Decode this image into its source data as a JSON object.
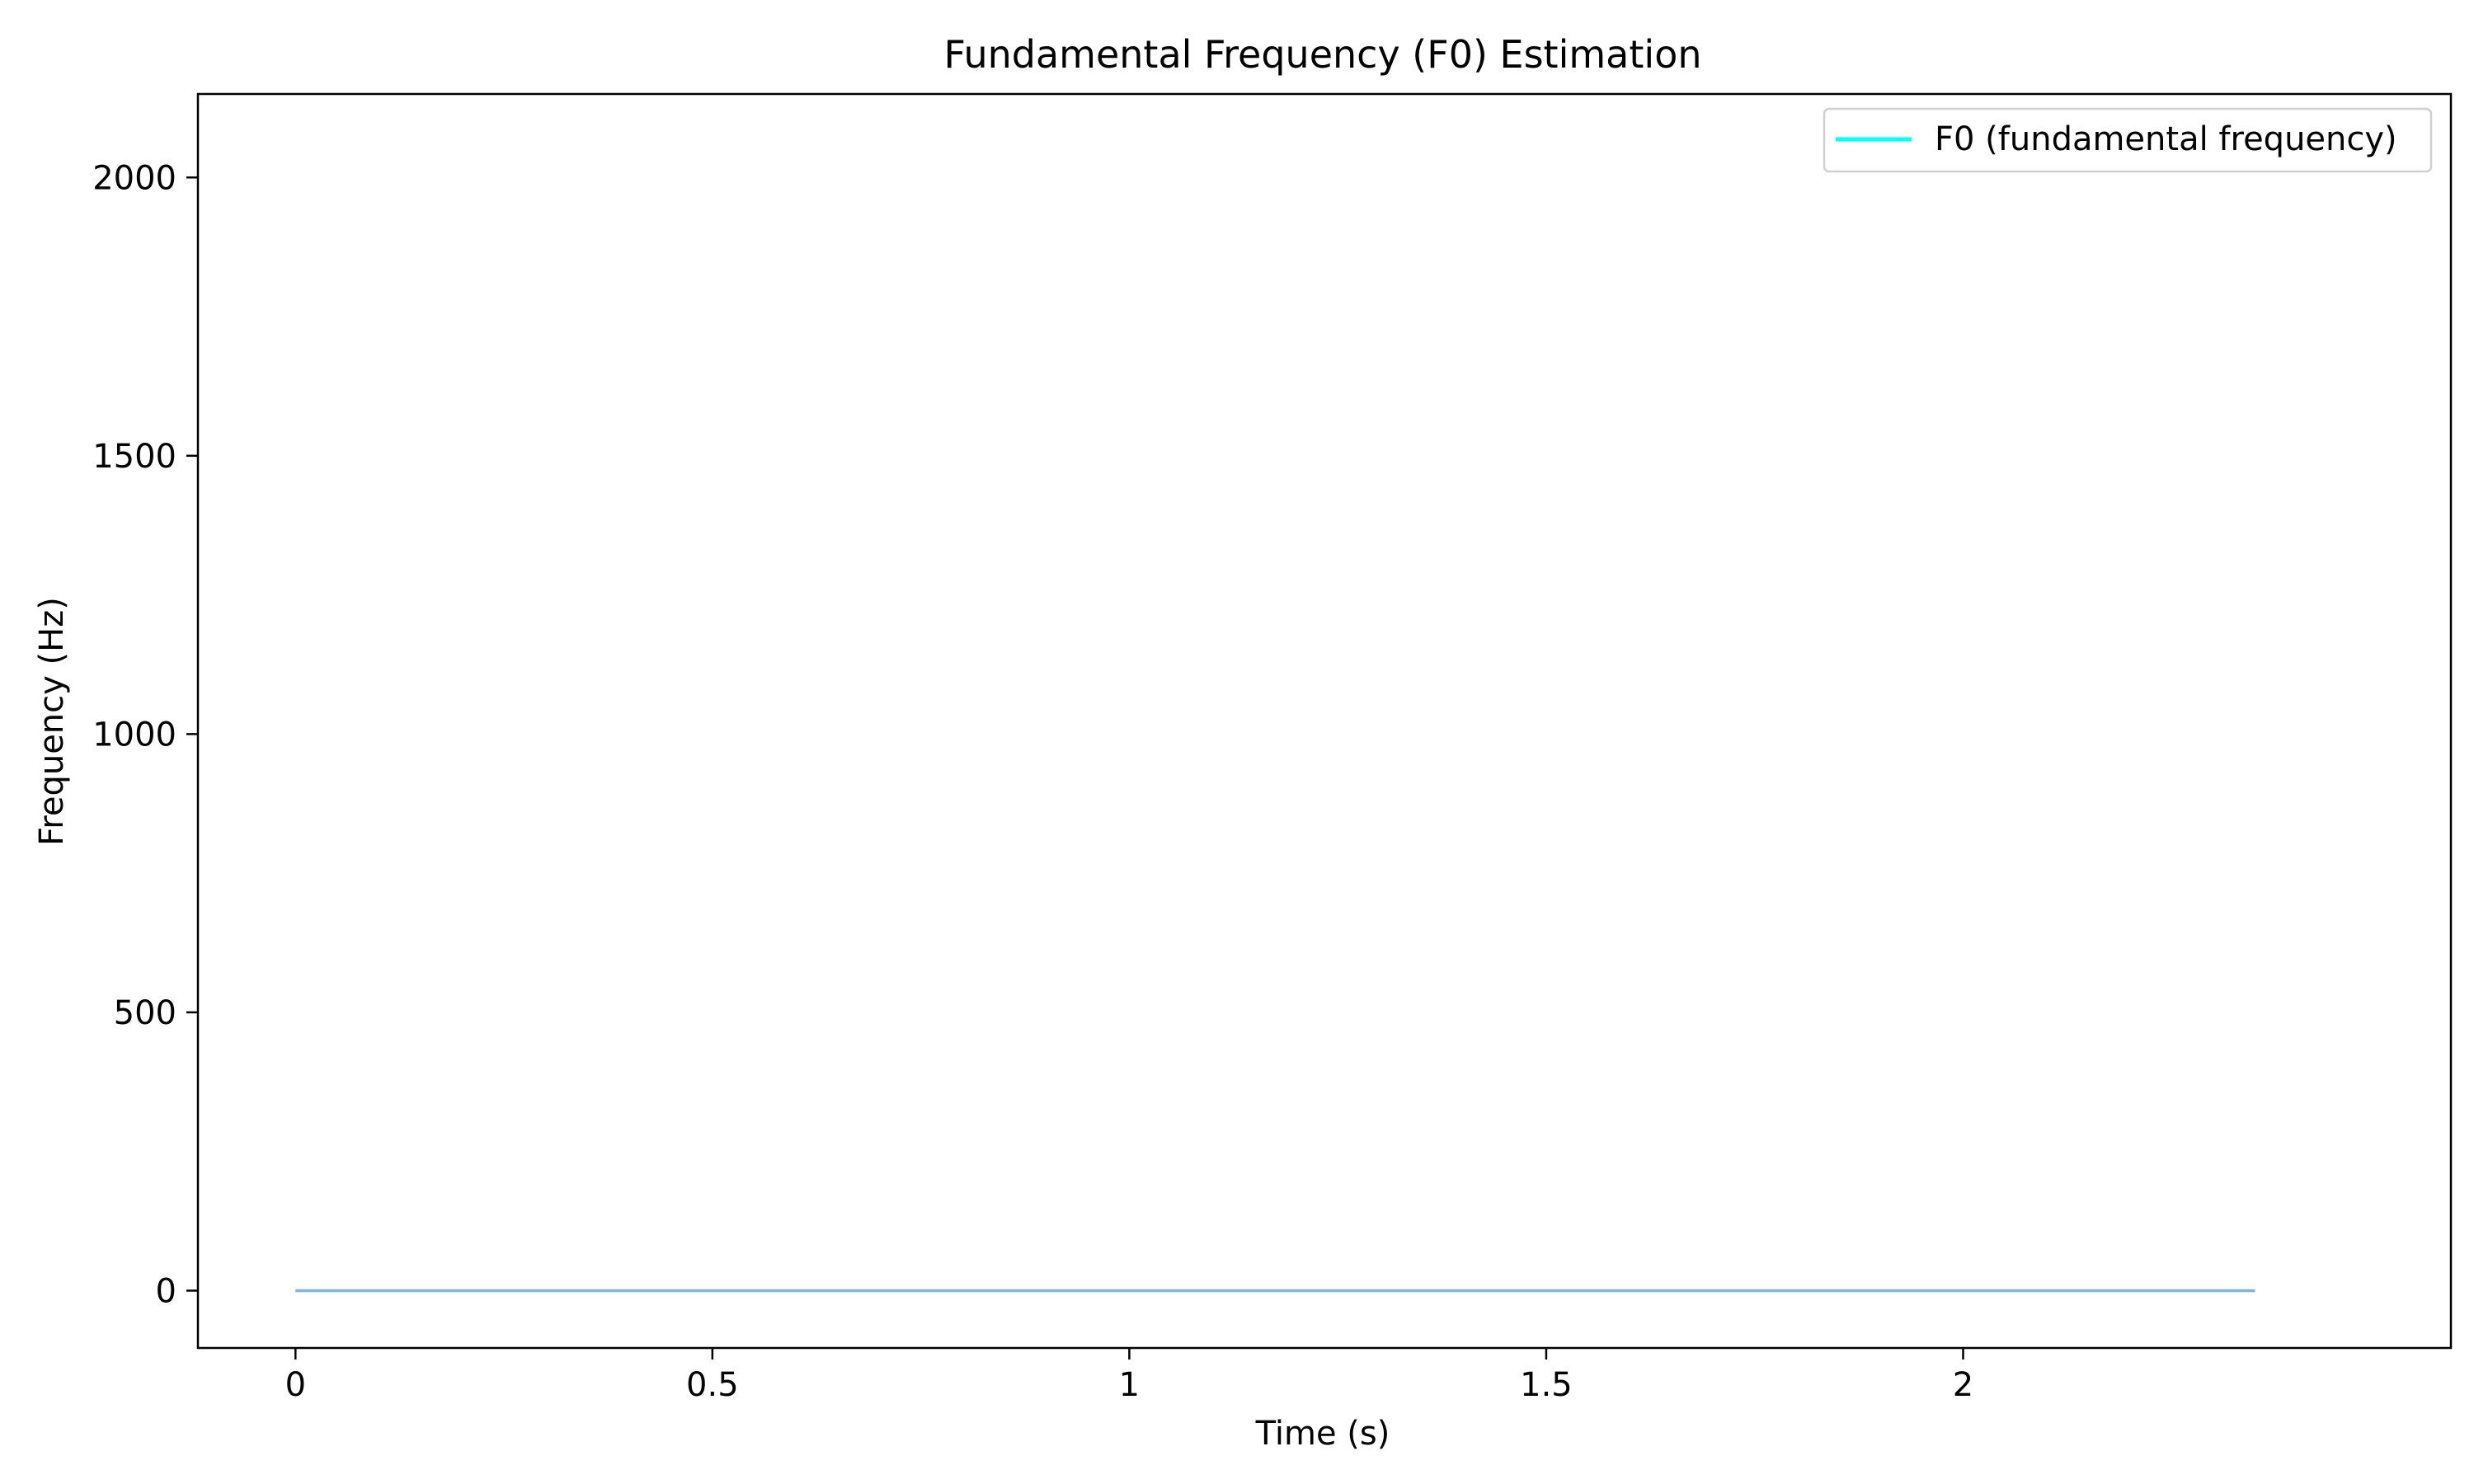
{
  "chart_data": {
    "type": "line",
    "title": "Fundamental Frequency (F0) Estimation",
    "xlabel": "Time (s)",
    "ylabel": "Frequency (Hz)",
    "xlim": [
      -0.117,
      2.585
    ],
    "ylim": [
      -103,
      2150
    ],
    "xticks": [
      0,
      0.5,
      1,
      1.5,
      2
    ],
    "xtick_labels": [
      "0",
      "0.5",
      "1",
      "1.5",
      "2"
    ],
    "yticks": [
      0,
      500,
      1000,
      1500,
      2000
    ],
    "ytick_labels": [
      "0",
      "500",
      "1000",
      "1500",
      "2000"
    ],
    "grid": false,
    "legend_position": "upper right",
    "series": [
      {
        "name": "F0 (fundamental frequency)",
        "legend_color": "#00ffff",
        "line_color": "#7fb6d9",
        "x": [
          0,
          2.35
        ],
        "y": [
          0,
          0
        ]
      }
    ]
  }
}
